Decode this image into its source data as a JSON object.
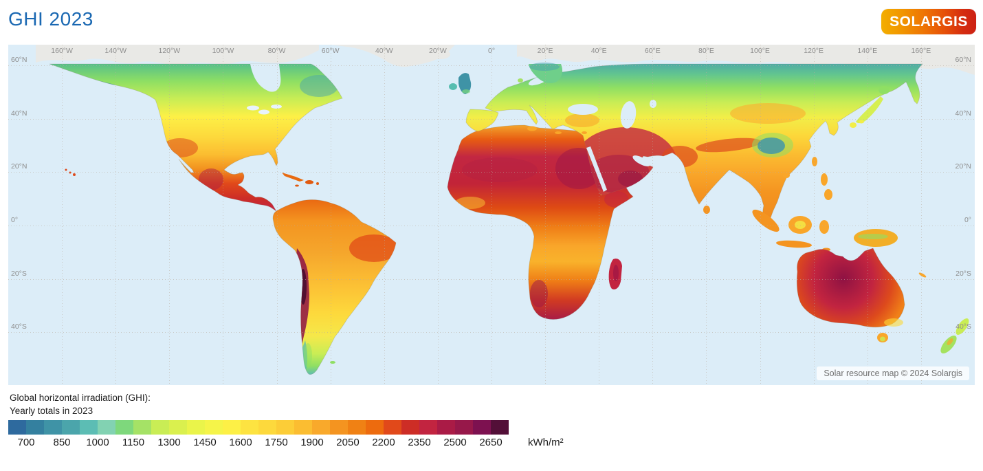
{
  "header": {
    "title": "GHI 2023",
    "logo_text": "SOLARGIS"
  },
  "map": {
    "attribution": "Solar resource map © 2024 Solargis",
    "lon_labels": [
      "160°W",
      "140°W",
      "120°W",
      "100°W",
      "80°W",
      "60°W",
      "40°W",
      "20°W",
      "0°",
      "20°E",
      "40°E",
      "60°E",
      "80°E",
      "100°E",
      "120°E",
      "140°E",
      "160°E"
    ],
    "lat_labels": [
      "60°N",
      "40°N",
      "20°N",
      "0°",
      "20°S",
      "40°S"
    ],
    "ocean_color": "#dcedf8",
    "no_data_color": "#e9e9e6"
  },
  "legend": {
    "title_line1": "Global horizontal irradiation (GHI):",
    "title_line2": "Yearly totals in 2023",
    "unit": "kWh/m²",
    "tick_labels": [
      "700",
      "850",
      "1000",
      "1150",
      "1300",
      "1450",
      "1600",
      "1750",
      "1900",
      "2050",
      "2200",
      "2350",
      "2500",
      "2650"
    ],
    "colors": [
      "#2e6a9e",
      "#34809f",
      "#3f93a6",
      "#4ba5ab",
      "#5cbdb4",
      "#82d2b2",
      "#7ed87c",
      "#a5e266",
      "#c9ed55",
      "#daf04e",
      "#eaf44a",
      "#f5f449",
      "#fdf046",
      "#fde341",
      "#fdd93c",
      "#fccd37",
      "#fbbd31",
      "#f9a92b",
      "#f49420",
      "#f08114",
      "#ed6b0e",
      "#e1491a",
      "#cd2d26",
      "#c22440",
      "#aa1b46",
      "#97184a",
      "#7d1150",
      "#530f38"
    ]
  },
  "colors": {
    "title_text": "#1a68b2",
    "logo_gradient": [
      "#f3ae00",
      "#f19500",
      "#ee7404",
      "#e54e09",
      "#cc2114"
    ],
    "axis_label": "#8e8e8e",
    "attribution_text": "#6f6f6f"
  }
}
